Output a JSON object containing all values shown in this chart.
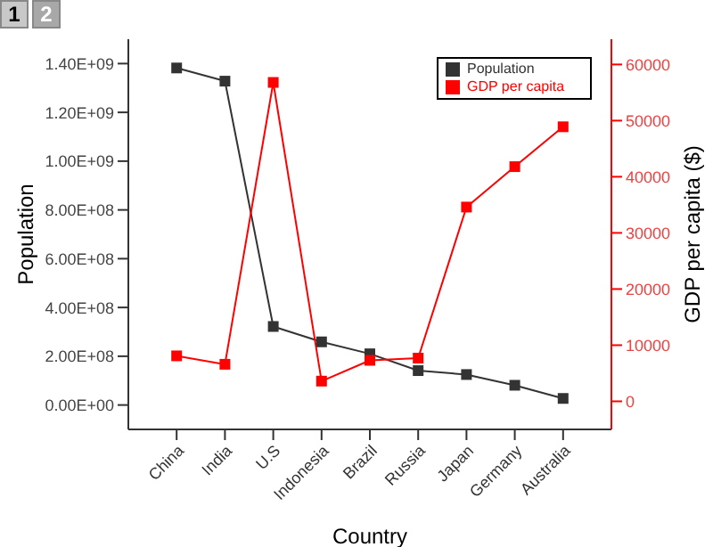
{
  "chart_data": {
    "type": "line",
    "xlabel": "Country",
    "ylabel": "Population",
    "y2label": "GDP per capita ($)",
    "categories": [
      "China",
      "India",
      "U.S",
      "Indonesia",
      "Brazil",
      "Russia",
      "Japan",
      "Germany",
      "Australia"
    ],
    "series": [
      {
        "name": "Population",
        "color": "#333333",
        "values": [
          1382000000,
          1328000000,
          322000000,
          259000000,
          210000000,
          141000000,
          125000000,
          81000000,
          27000000
        ]
      },
      {
        "name": "GDP per capita",
        "color": "#ff0000",
        "axis": "y2",
        "values": [
          8100,
          6600,
          56800,
          3600,
          7300,
          7700,
          34600,
          41800,
          48900
        ]
      }
    ],
    "ylim": [
      -100000000,
      1500000000
    ],
    "yticks": [
      {
        "value": 0,
        "label": "0.00E+00"
      },
      {
        "value": 200000000,
        "label": "2.00E+08"
      },
      {
        "value": 400000000,
        "label": "4.00E+08"
      },
      {
        "value": 600000000,
        "label": "6.00E+08"
      },
      {
        "value": 800000000,
        "label": "8.00E+08"
      },
      {
        "value": 1000000000,
        "label": "1.00E+09"
      },
      {
        "value": 1200000000,
        "label": "1.20E+09"
      },
      {
        "value": 1400000000,
        "label": "1.40E+09"
      }
    ],
    "y2lim": [
      -5000,
      64500
    ],
    "y2ticks": [
      0,
      10000,
      20000,
      30000,
      40000,
      50000,
      60000
    ],
    "marker": "square",
    "line_style": "solid",
    "legend": "top right",
    "grid": false,
    "annotations": [
      "1",
      "2"
    ]
  }
}
